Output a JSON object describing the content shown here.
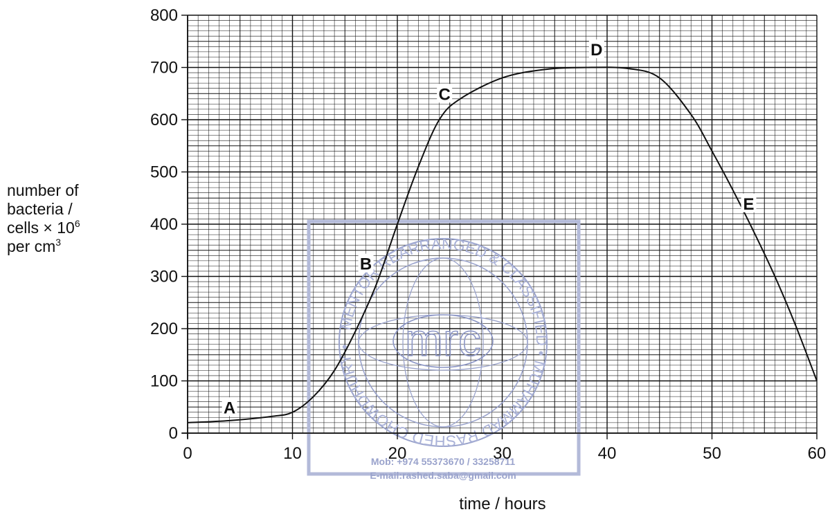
{
  "chart_data": {
    "type": "line",
    "xlabel": "time / hours",
    "ylabel_lines": [
      "number of",
      "bacteria /",
      "cells × 10",
      "per cm"
    ],
    "ylabel_superscripts": [
      "",
      "",
      "6",
      "3"
    ],
    "xlim": [
      0,
      60
    ],
    "ylim": [
      0,
      800
    ],
    "x_ticks": [
      0,
      10,
      20,
      30,
      40,
      50,
      60
    ],
    "y_ticks": [
      0,
      100,
      200,
      300,
      400,
      500,
      600,
      700,
      800
    ],
    "grid": true,
    "series": [
      {
        "points": [
          {
            "x": 0,
            "y": 20
          },
          {
            "x": 4,
            "y": 24
          },
          {
            "x": 8,
            "y": 32
          },
          {
            "x": 10,
            "y": 40
          },
          {
            "x": 12,
            "y": 70
          },
          {
            "x": 14,
            "y": 120
          },
          {
            "x": 16,
            "y": 195
          },
          {
            "x": 18,
            "y": 285
          },
          {
            "x": 20,
            "y": 400
          },
          {
            "x": 22,
            "y": 510
          },
          {
            "x": 24,
            "y": 600
          },
          {
            "x": 26,
            "y": 640
          },
          {
            "x": 30,
            "y": 680
          },
          {
            "x": 34,
            "y": 696
          },
          {
            "x": 38,
            "y": 700
          },
          {
            "x": 42,
            "y": 698
          },
          {
            "x": 45,
            "y": 680
          },
          {
            "x": 48,
            "y": 610
          },
          {
            "x": 50,
            "y": 540
          },
          {
            "x": 52,
            "y": 465
          },
          {
            "x": 54,
            "y": 385
          },
          {
            "x": 56,
            "y": 300
          },
          {
            "x": 58,
            "y": 205
          },
          {
            "x": 60,
            "y": 100
          }
        ]
      }
    ],
    "annotations": [
      {
        "text": "A",
        "x": 4,
        "y": 50
      },
      {
        "text": "B",
        "x": 17,
        "y": 325
      },
      {
        "text": "C",
        "x": 24.5,
        "y": 650
      },
      {
        "text": "D",
        "x": 39,
        "y": 735
      },
      {
        "text": "E",
        "x": 53.5,
        "y": 440
      }
    ]
  },
  "watermark": {
    "logo_text": "mrc",
    "ring_text": "MENTOR REARRANGED & CLASSIFIED • MUHAMMAD RASHED CHOWDHURY •",
    "mobile": "Mob:  +974 55373670 / 33258711",
    "email": "E-mail:rashed.saba@gmail.com",
    "color": "#8d97c6"
  },
  "colors": {
    "grid": "#111111",
    "line": "#111111"
  }
}
